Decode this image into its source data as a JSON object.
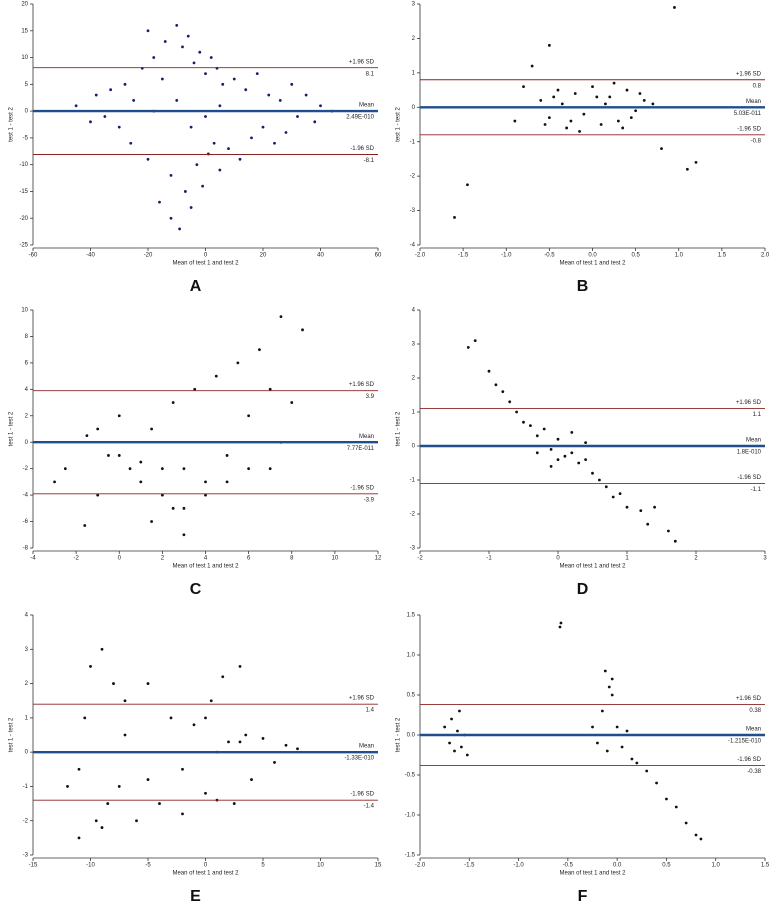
{
  "chart_data": [
    {
      "type": "scatter",
      "panel_label": "A",
      "xlabel": "Mean of test 1 and test 2",
      "ylabel": "test 1 - test 2",
      "color": "#1a1a6e",
      "xlim": [
        -60,
        60
      ],
      "xticks": [
        -60,
        -40,
        -20,
        0,
        20,
        40,
        60
      ],
      "ylim": [
        -25,
        20
      ],
      "yticks": [
        -25,
        -20,
        -15,
        -10,
        -5,
        0,
        5,
        10,
        15,
        20
      ],
      "x": [
        -45,
        -40,
        -38,
        -35,
        -33,
        -30,
        -28,
        -26,
        -25,
        -22,
        -20,
        -18,
        -16,
        -15,
        -14,
        -12,
        -10,
        -9,
        -8,
        -7,
        -6,
        -5,
        -4,
        -3,
        -2,
        -1,
        0,
        1,
        2,
        3,
        4,
        5,
        6,
        8,
        10,
        12,
        14,
        16,
        18,
        20,
        22,
        24,
        26,
        28,
        30,
        32,
        35,
        38,
        40,
        44,
        -18,
        -10,
        -5,
        0,
        5,
        -12,
        -20
      ],
      "y": [
        1,
        -2,
        3,
        -1,
        4,
        -3,
        5,
        -6,
        2,
        8,
        -9,
        10,
        -17,
        6,
        13,
        -12,
        16,
        -22,
        12,
        -15,
        14,
        -18,
        9,
        -10,
        11,
        -14,
        7,
        -8,
        10,
        -6,
        8,
        -11,
        5,
        -7,
        6,
        -9,
        4,
        -5,
        7,
        -3,
        3,
        -6,
        2,
        -4,
        5,
        -1,
        3,
        -2,
        1,
        0,
        0,
        2,
        -3,
        -1,
        1,
        -20,
        15
      ],
      "lines": [
        {
          "name": "+1.96 SD",
          "value": 8.1,
          "color": "#8b2222"
        },
        {
          "name": "Mean",
          "value": 2.49e-10,
          "value_label": "2.49E-010",
          "color": "#1f4e8c"
        },
        {
          "name": "-1.96 SD",
          "value": -8.1,
          "color": "#8b2222"
        }
      ]
    },
    {
      "type": "scatter",
      "panel_label": "B",
      "xlabel": "Mean of test 1 and test 2",
      "ylabel": "test 1 - test 2",
      "color": "#111111",
      "xlim": [
        -2,
        2
      ],
      "xticks": [
        {
          "value": -2,
          "label": "-2.0"
        },
        -1.5,
        {
          "value": -1,
          "label": "-1.0"
        },
        -0.5,
        {
          "value": 0,
          "label": "0.0"
        },
        0.5,
        {
          "value": 1,
          "label": "1.0"
        },
        1.5,
        {
          "value": 2,
          "label": "2.0"
        }
      ],
      "ylim": [
        -4,
        3
      ],
      "yticks": [
        -4,
        -3,
        -2,
        -1,
        0,
        1,
        2,
        3
      ],
      "x": [
        -0.6,
        -0.5,
        -0.4,
        -0.3,
        -0.2,
        -0.1,
        0,
        0.1,
        0.2,
        0.3,
        0.4,
        0.5,
        0.6,
        -0.55,
        -0.35,
        -0.15,
        0.05,
        0.25,
        0.45,
        -0.45,
        -0.25,
        0.15,
        0.35,
        0.55,
        0.95,
        -1.6,
        -1.45,
        -0.5,
        -0.7,
        1.2,
        1.1,
        -0.8,
        0.8,
        -0.9,
        0.7
      ],
      "y": [
        0.2,
        -0.3,
        0.5,
        -0.6,
        0.4,
        -0.2,
        0.6,
        -0.5,
        0.3,
        -0.4,
        0.5,
        -0.1,
        0.2,
        -0.5,
        0.1,
        -0.7,
        0.3,
        0.7,
        -0.3,
        0.3,
        -0.4,
        0.1,
        -0.6,
        0.4,
        2.9,
        -3.2,
        -2.25,
        1.8,
        1.2,
        -1.6,
        -1.8,
        0.6,
        -1.2,
        -0.4,
        0.1
      ],
      "lines": [
        {
          "name": "+1.96 SD",
          "value": 0.8,
          "color": "#8b2222"
        },
        {
          "name": "Mean",
          "value": 5.03e-11,
          "value_label": "5.03E-011",
          "color": "#1f4e8c"
        },
        {
          "name": "-1.96 SD",
          "value": -0.8,
          "color": "#8b2222"
        }
      ]
    },
    {
      "type": "scatter",
      "panel_label": "C",
      "xlabel": "Mean of test 1 and test 2",
      "ylabel": "test 1 - test 2",
      "color": "#111111",
      "xlim": [
        -4,
        12
      ],
      "xticks": [
        -4,
        -2,
        0,
        2,
        4,
        6,
        8,
        10,
        12
      ],
      "ylim": [
        -8,
        10
      ],
      "yticks": [
        -8,
        -6,
        -4,
        -2,
        0,
        2,
        4,
        6,
        8,
        10
      ],
      "x": [
        -3,
        -2.5,
        -1.5,
        -1,
        -0.5,
        0,
        0.5,
        1,
        1.5,
        2,
        2.5,
        3,
        3.5,
        4,
        4.5,
        5,
        5.5,
        6,
        6.5,
        7,
        7.5,
        8,
        8.5,
        0,
        1,
        2,
        3,
        4,
        5,
        6,
        7,
        -1,
        3,
        1.5,
        2.5,
        7.5,
        -1.6
      ],
      "y": [
        -3,
        -2,
        0.5,
        1,
        -1,
        2,
        -2,
        -3,
        1,
        -4,
        3,
        -2,
        4,
        -3,
        5,
        -1,
        6,
        2,
        7,
        -2,
        9.5,
        3,
        8.5,
        -1,
        -1.5,
        -2,
        -5,
        -4,
        -3,
        -2,
        4,
        -4,
        -7,
        -6,
        -5,
        0,
        -6.3
      ],
      "lines": [
        {
          "name": "+1.96 SD",
          "value": 3.9,
          "color": "#8b2222"
        },
        {
          "name": "Mean",
          "value": 7.77e-11,
          "value_label": "7.77E-011",
          "color": "#1f4e8c"
        },
        {
          "name": "-1.96 SD",
          "value": -3.9,
          "color": "#8b2222"
        }
      ]
    },
    {
      "type": "scatter",
      "panel_label": "D",
      "xlabel": "Mean of test 1 and test 2",
      "ylabel": "test 1 - test 2",
      "color": "#111111",
      "xlim": [
        -2,
        3
      ],
      "xticks": [
        -2,
        -1,
        0,
        1,
        2,
        3
      ],
      "ylim": [
        -3,
        4
      ],
      "yticks": [
        -3,
        -2,
        -1,
        0,
        1,
        2,
        3,
        4
      ],
      "x": [
        -1.3,
        -1.2,
        -1,
        -0.8,
        -0.7,
        -0.6,
        -0.5,
        -0.4,
        -0.3,
        -0.2,
        -0.1,
        0,
        0.1,
        0.2,
        0.3,
        0.4,
        0.5,
        0.6,
        0.7,
        0.9,
        1,
        1.2,
        1.3,
        1.4,
        1.6,
        1.7,
        -0.3,
        0,
        0.2,
        -0.1,
        0.4,
        -0.9,
        0.8
      ],
      "y": [
        2.9,
        3.1,
        2.2,
        1.6,
        1.3,
        1,
        0.7,
        0.6,
        0.3,
        0.5,
        -0.1,
        0.2,
        -0.3,
        -0.2,
        -0.5,
        -0.4,
        -0.8,
        -1,
        -1.2,
        -1.4,
        -1.8,
        -1.9,
        -2.3,
        -1.8,
        -2.5,
        -2.8,
        -0.2,
        -0.4,
        0.4,
        -0.6,
        0.1,
        1.8,
        -1.5
      ],
      "lines": [
        {
          "name": "+1.96 SD",
          "value": 1.1,
          "color": "#8b2222"
        },
        {
          "name": "Mean",
          "value": 1.8e-10,
          "value_label": "1.8E-010",
          "color": "#1f4e8c"
        },
        {
          "name": "-1.96 SD",
          "value": -1.1,
          "color": "#8b2222"
        }
      ]
    },
    {
      "type": "scatter",
      "panel_label": "E",
      "xlabel": "Mean of test 1 and test 2",
      "ylabel": "test 1 - test 2",
      "color": "#111111",
      "xlim": [
        -15,
        15
      ],
      "xticks": [
        -15,
        -10,
        -5,
        0,
        5,
        10,
        15
      ],
      "ylim": [
        -3,
        4
      ],
      "yticks": [
        -3,
        -2,
        -1,
        0,
        1,
        2,
        3,
        4
      ],
      "x": [
        -12,
        -11,
        -10.5,
        -10,
        -9.5,
        -9,
        -8.5,
        -8,
        -7.5,
        -7,
        -6,
        -5,
        -4,
        -3,
        -2,
        -1,
        0,
        0.5,
        1,
        1.5,
        2,
        2.5,
        3,
        3.5,
        4,
        5,
        6,
        7,
        8,
        -9,
        -7,
        -5,
        -11,
        1,
        3,
        -2,
        0
      ],
      "y": [
        -1,
        -2.5,
        1,
        2.5,
        -2,
        3,
        -1.5,
        2,
        -1,
        1.5,
        -2,
        2,
        -1.5,
        1,
        -0.5,
        0.8,
        -1.2,
        1.5,
        -1.4,
        2.2,
        0.3,
        -1.5,
        2.5,
        0.5,
        -0.8,
        0.4,
        -0.3,
        0.2,
        0.1,
        -2.2,
        0.5,
        -0.8,
        -0.5,
        0,
        0.3,
        -1.8,
        1
      ],
      "lines": [
        {
          "name": "+1.96 SD",
          "value": 1.4,
          "color": "#8b2222"
        },
        {
          "name": "Mean",
          "value": -1.33e-10,
          "value_label": "-1.33E-010",
          "color": "#1f4e8c"
        },
        {
          "name": "-1.96 SD",
          "value": -1.4,
          "color": "#8b2222"
        }
      ]
    },
    {
      "type": "scatter",
      "panel_label": "F",
      "xlabel": "Mean of test 1 and test 2",
      "ylabel": "test 1 - test 2",
      "color": "#111111",
      "xlim": [
        -2,
        1.5
      ],
      "xticks": [
        {
          "value": -2,
          "label": "-2.0"
        },
        -1.5,
        {
          "value": -1,
          "label": "-1.0"
        },
        -0.5,
        {
          "value": 0,
          "label": "0.0"
        },
        0.5,
        {
          "value": 1,
          "label": "1.0"
        },
        1.5
      ],
      "ylim": [
        -1.5,
        1.5
      ],
      "yticks": [
        -1.5,
        {
          "value": -1,
          "label": "-1.0"
        },
        -0.5,
        {
          "value": 0,
          "label": "0.0"
        },
        0.5,
        {
          "value": 1,
          "label": "1.0"
        },
        1.5
      ],
      "x": [
        -1.75,
        -1.7,
        -1.68,
        -1.65,
        -1.62,
        -1.6,
        -1.58,
        -1.55,
        -1.52,
        -0.58,
        -0.57,
        -0.25,
        -0.2,
        -0.15,
        -0.1,
        -0.05,
        0,
        0.05,
        0.1,
        0.15,
        -0.12,
        -0.05,
        0.2,
        0.3,
        0.4,
        0.5,
        0.6,
        0.7,
        0.8,
        0.85,
        -0.08
      ],
      "y": [
        0.1,
        -0.1,
        0.2,
        -0.2,
        0.05,
        0.3,
        -0.15,
        0,
        -0.25,
        1.35,
        1.4,
        0.1,
        -0.1,
        0.3,
        -0.2,
        0.5,
        0.1,
        -0.15,
        0.05,
        -0.3,
        0.8,
        0.7,
        -0.35,
        -0.45,
        -0.6,
        -0.8,
        -0.9,
        -1.1,
        -1.25,
        -1.3,
        0.6
      ],
      "lines": [
        {
          "name": "+1.96 SD",
          "value": 0.38,
          "color": "#8b2222"
        },
        {
          "name": "Mean",
          "value": -1.215e-10,
          "value_label": "-1.215E-010",
          "color": "#1f4e8c"
        },
        {
          "name": "-1.96 SD",
          "value": -0.38,
          "color": "#8b2222"
        }
      ]
    }
  ]
}
